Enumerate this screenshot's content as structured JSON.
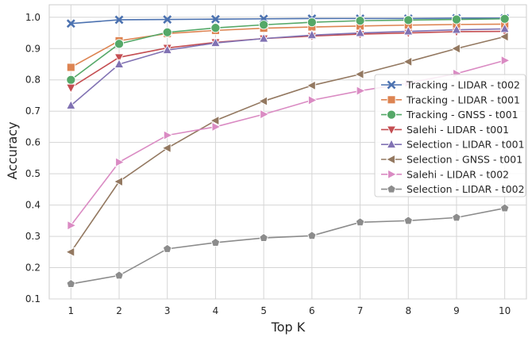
{
  "chart_data": {
    "type": "line",
    "xlabel": "Top K",
    "ylabel": "Accuracy",
    "x": [
      1,
      2,
      3,
      4,
      5,
      6,
      7,
      8,
      9,
      10
    ],
    "xticks": [
      "1",
      "2",
      "3",
      "4",
      "5",
      "6",
      "7",
      "8",
      "9",
      "10"
    ],
    "xlim": [
      0.55,
      10.45
    ],
    "yticks": [
      "0.1",
      "0.2",
      "0.3",
      "0.4",
      "0.5",
      "0.6",
      "0.7",
      "0.8",
      "0.9",
      "1.0"
    ],
    "ylim": [
      0.1,
      1.04
    ],
    "grid": true,
    "legend_position": "right",
    "series": [
      {
        "name": "Tracking - LIDAR - t002",
        "color": "#4c72b0",
        "marker": "x",
        "values": [
          0.98,
          0.992,
          0.993,
          0.994,
          0.995,
          0.996,
          0.996,
          0.996,
          0.997,
          0.997
        ]
      },
      {
        "name": "Tracking - LIDAR - t001",
        "color": "#dd8452",
        "marker": "square",
        "values": [
          0.84,
          0.925,
          0.948,
          0.958,
          0.965,
          0.969,
          0.972,
          0.975,
          0.977,
          0.978
        ]
      },
      {
        "name": "Tracking - GNSS - t001",
        "color": "#55a868",
        "marker": "circle",
        "values": [
          0.8,
          0.915,
          0.952,
          0.966,
          0.976,
          0.984,
          0.989,
          0.991,
          0.993,
          0.995
        ]
      },
      {
        "name": "Salehi - LIDAR - t001",
        "color": "#c44e52",
        "marker": "triangle-down",
        "values": [
          0.775,
          0.872,
          0.902,
          0.92,
          0.932,
          0.94,
          0.946,
          0.95,
          0.954,
          0.955
        ]
      },
      {
        "name": "Selection - LIDAR - t001",
        "color": "#8172b3",
        "marker": "triangle-up",
        "values": [
          0.718,
          0.85,
          0.895,
          0.918,
          0.932,
          0.943,
          0.95,
          0.955,
          0.96,
          0.963
        ]
      },
      {
        "name": "Selection - GNSS - t001",
        "color": "#937860",
        "marker": "triangle-left",
        "values": [
          0.25,
          0.475,
          0.582,
          0.67,
          0.732,
          0.782,
          0.818,
          0.858,
          0.9,
          0.938
        ]
      },
      {
        "name": "Salehi - LIDAR - t002",
        "color": "#da8bc3",
        "marker": "triangle-right",
        "values": [
          0.335,
          0.537,
          0.623,
          0.65,
          0.69,
          0.735,
          0.765,
          0.79,
          0.82,
          0.862
        ]
      },
      {
        "name": "Selection - LIDAR - t002",
        "color": "#8c8c8c",
        "marker": "pentagon",
        "values": [
          0.148,
          0.175,
          0.26,
          0.28,
          0.295,
          0.302,
          0.345,
          0.35,
          0.36,
          0.39
        ]
      }
    ]
  }
}
